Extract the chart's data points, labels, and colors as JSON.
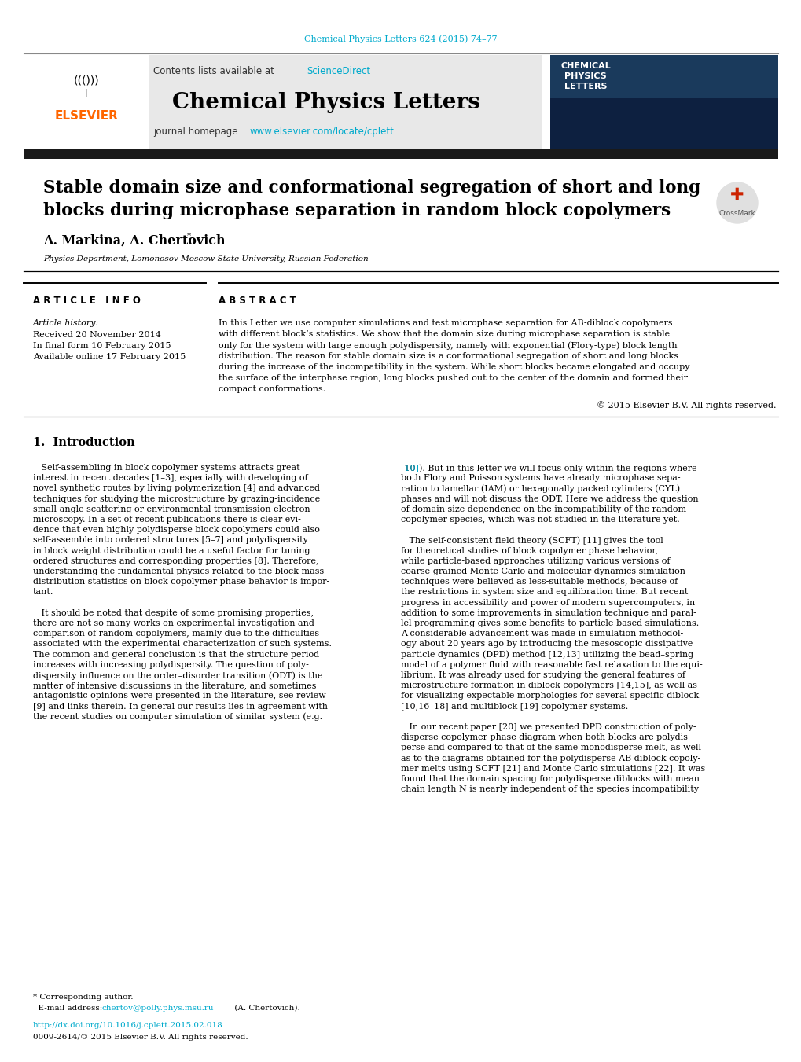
{
  "page_bg": "#ffffff",
  "top_citation": "Chemical Physics Letters 624 (2015) 74–77",
  "top_citation_color": "#00aacc",
  "journal_name": "Chemical Physics Letters",
  "contents_text": "Contents lists available at ",
  "sciencedirect_text": "ScienceDirect",
  "sciencedirect_color": "#00aacc",
  "journal_url": "www.elsevier.com/locate/cplett",
  "journal_url_color": "#00aacc",
  "header_bg": "#e8e8e8",
  "title_line1": "Stable domain size and conformational segregation of short and long",
  "title_line2": "blocks during microphase separation in random block copolymers",
  "authors": "A. Markina, A. Chertovich",
  "affiliation": "Physics Department, Lomonosov Moscow State University, Russian Federation",
  "article_info_header": "A R T I C L E   I N F O",
  "article_history_label": "Article history:",
  "received": "Received 20 November 2014",
  "in_final": "In final form 10 February 2015",
  "available": "Available online 17 February 2015",
  "abstract_header": "A B S T R A C T",
  "copyright": "© 2015 Elsevier B.V. All rights reserved.",
  "section1_title": "1.  Introduction",
  "footer_corresponding": "* Corresponding author.",
  "footer_email_label": "  E-mail address: ",
  "footer_email": "chertov@polly.phys.msu.ru",
  "footer_email_suffix": " (A. Chertovich).",
  "footer_doi": "http://dx.doi.org/10.1016/j.cplett.2015.02.018",
  "footer_doi_color": "#00aacc",
  "footer_issn": "0009-2614/© 2015 Elsevier B.V. All rights reserved.",
  "elsevier_color": "#ff6600",
  "link_color": "#00aacc",
  "abstract_lines": [
    "In this Letter we use computer simulations and test microphase separation for AB-diblock copolymers",
    "with different block’s statistics. We show that the domain size during microphase separation is stable",
    "only for the system with large enough polydispersity, namely with exponential (Flory-type) block length",
    "distribution. The reason for stable domain size is a conformational segregation of short and long blocks",
    "during the increase of the incompatibility in the system. While short blocks became elongated and occupy",
    "the surface of the interphase region, long blocks pushed out to the center of the domain and formed their",
    "compact conformations."
  ],
  "left_col_lines": [
    "   Self-assembling in block copolymer systems attracts great",
    "interest in recent decades [1–3], especially with developing of",
    "novel synthetic routes by living polymerization [4] and advanced",
    "techniques for studying the microstructure by grazing-incidence",
    "small-angle scattering or environmental transmission electron",
    "microscopy. In a set of recent publications there is clear evi-",
    "dence that even highly polydisperse block copolymers could also",
    "self-assemble into ordered structures [5–7] and polydispersity",
    "in block weight distribution could be a useful factor for tuning",
    "ordered structures and corresponding properties [8]. Therefore,",
    "understanding the fundamental physics related to the block-mass",
    "distribution statistics on block copolymer phase behavior is impor-",
    "tant.",
    "",
    "   It should be noted that despite of some promising properties,",
    "there are not so many works on experimental investigation and",
    "comparison of random copolymers, mainly due to the difficulties",
    "associated with the experimental characterization of such systems.",
    "The common and general conclusion is that the structure period",
    "increases with increasing polydispersity. The question of poly-",
    "dispersity influence on the order–disorder transition (ODT) is the",
    "matter of intensive discussions in the literature, and sometimes",
    "antagonistic opinions were presented in the literature, see review",
    "[9] and links therein. In general our results lies in agreement with",
    "the recent studies on computer simulation of similar system (e.g."
  ],
  "right_col_lines": [
    "[10]). But in this letter we will focus only within the regions where",
    "both Flory and Poisson systems have already microphase sepa-",
    "ration to lamellar (IAM) or hexagonally packed cylinders (CYL)",
    "phases and will not discuss the ODT. Here we address the question",
    "of domain size dependence on the incompatibility of the random",
    "copolymer species, which was not studied in the literature yet.",
    "",
    "   The self-consistent field theory (SCFT) [11] gives the tool",
    "for theoretical studies of block copolymer phase behavior,",
    "while particle-based approaches utilizing various versions of",
    "coarse-grained Monte Carlo and molecular dynamics simulation",
    "techniques were believed as less-suitable methods, because of",
    "the restrictions in system size and equilibration time. But recent",
    "progress in accessibility and power of modern supercomputers, in",
    "addition to some improvements in simulation technique and paral-",
    "lel programming gives some benefits to particle-based simulations.",
    "A considerable advancement was made in simulation methodol-",
    "ogy about 20 years ago by introducing the mesoscopic dissipative",
    "particle dynamics (DPD) method [12,13] utilizing the bead–spring",
    "model of a polymer fluid with reasonable fast relaxation to the equi-",
    "librium. It was already used for studying the general features of",
    "microstructure formation in diblock copolymers [14,15], as well as",
    "for visualizing expectable morphologies for several specific diblock",
    "[10,16–18] and multiblock [19] copolymer systems.",
    "",
    "   In our recent paper [20] we presented DPD construction of poly-",
    "disperse copolymer phase diagram when both blocks are polydis-",
    "perse and compared to that of the same monodisperse melt, as well",
    "as to the diagrams obtained for the polydisperse AB diblock copoly-",
    "mer melts using SCFT [21] and Monte Carlo simulations [22]. It was",
    "found that the domain spacing for polydisperse diblocks with mean",
    "chain length N is nearly independent of the species incompatibility"
  ]
}
